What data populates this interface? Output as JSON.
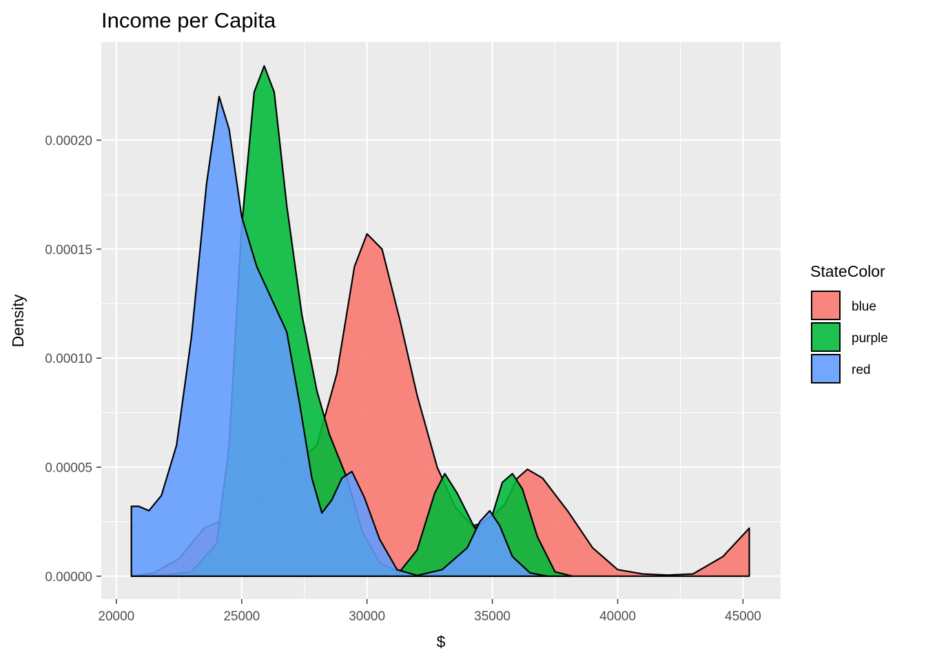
{
  "chart_data": {
    "type": "area",
    "subtype": "density",
    "title": "Income per Capita",
    "xlabel": "$",
    "ylabel": "Density",
    "xlim": [
      19400,
      46500
    ],
    "ylim": [
      -1.05e-05,
      0.000245
    ],
    "x_ticks": [
      {
        "value": 20000,
        "label": "20000"
      },
      {
        "value": 25000,
        "label": "25000"
      },
      {
        "value": 30000,
        "label": "30000"
      },
      {
        "value": 35000,
        "label": "35000"
      },
      {
        "value": 40000,
        "label": "40000"
      },
      {
        "value": 45000,
        "label": "45000"
      }
    ],
    "y_ticks": [
      {
        "value": 0,
        "label": "0.00000"
      },
      {
        "value": 5e-05,
        "label": "0.00005"
      },
      {
        "value": 0.0001,
        "label": "0.00010"
      },
      {
        "value": 0.00015,
        "label": "0.00015"
      },
      {
        "value": 0.0002,
        "label": "0.00020"
      }
    ],
    "grid": true,
    "legend": {
      "title": "StateColor",
      "placement": "right"
    },
    "series": [
      {
        "name": "blue",
        "color": "#F8766D",
        "points": [
          [
            20600,
            0
          ],
          [
            21500,
            1.5e-06
          ],
          [
            22500,
            8e-06
          ],
          [
            23500,
            2.2e-05
          ],
          [
            24500,
            2.7e-05
          ],
          [
            25500,
            3.2e-05
          ],
          [
            26100,
            4.4e-05
          ],
          [
            26800,
            5.8e-05
          ],
          [
            27500,
            5.5e-05
          ],
          [
            28000,
            6e-05
          ],
          [
            28800,
            9.3e-05
          ],
          [
            29500,
            0.000142
          ],
          [
            30000,
            0.000157
          ],
          [
            30600,
            0.00015
          ],
          [
            31300,
            0.000118
          ],
          [
            32000,
            8.3e-05
          ],
          [
            32800,
            5e-05
          ],
          [
            33500,
            3.2e-05
          ],
          [
            34200,
            2.3e-05
          ],
          [
            34800,
            2.5e-05
          ],
          [
            35500,
            3.3e-05
          ],
          [
            36000,
            4.5e-05
          ],
          [
            36400,
            4.9e-05
          ],
          [
            37000,
            4.5e-05
          ],
          [
            38000,
            3e-05
          ],
          [
            39000,
            1.3e-05
          ],
          [
            40000,
            3e-06
          ],
          [
            41000,
            1e-06
          ],
          [
            42000,
            5e-07
          ],
          [
            43000,
            1e-06
          ],
          [
            44200,
            9e-06
          ],
          [
            45250,
            2.2e-05
          ]
        ]
      },
      {
        "name": "purple",
        "color": "#00BA38",
        "points": [
          [
            20600,
            0
          ],
          [
            22000,
            5e-07
          ],
          [
            23000,
            2e-06
          ],
          [
            24000,
            1.5e-05
          ],
          [
            24500,
            6e-05
          ],
          [
            25000,
            0.00016
          ],
          [
            25500,
            0.000222
          ],
          [
            25900,
            0.000234
          ],
          [
            26300,
            0.000222
          ],
          [
            26800,
            0.00017
          ],
          [
            27400,
            0.00012
          ],
          [
            28000,
            8.5e-05
          ],
          [
            28500,
            6.5e-05
          ],
          [
            29200,
            4.5e-05
          ],
          [
            29800,
            2.1e-05
          ],
          [
            30500,
            6e-06
          ],
          [
            31300,
            2e-06
          ],
          [
            32000,
            1.2e-05
          ],
          [
            32700,
            3.8e-05
          ],
          [
            33100,
            4.7e-05
          ],
          [
            33600,
            3.8e-05
          ],
          [
            34300,
            2.2e-05
          ],
          [
            35000,
            2.8e-05
          ],
          [
            35400,
            4.3e-05
          ],
          [
            35800,
            4.7e-05
          ],
          [
            36200,
            4e-05
          ],
          [
            36800,
            1.8e-05
          ],
          [
            37500,
            2e-06
          ],
          [
            38200,
            0
          ]
        ]
      },
      {
        "name": "red",
        "color": "#619CFF",
        "points": [
          [
            20600,
            3.2e-05
          ],
          [
            20900,
            3.2e-05
          ],
          [
            21300,
            3e-05
          ],
          [
            21800,
            3.7e-05
          ],
          [
            22400,
            6e-05
          ],
          [
            23000,
            0.00011
          ],
          [
            23600,
            0.00018
          ],
          [
            24100,
            0.00022
          ],
          [
            24500,
            0.000205
          ],
          [
            25000,
            0.000165
          ],
          [
            25600,
            0.000142
          ],
          [
            26200,
            0.000127
          ],
          [
            26800,
            0.000112
          ],
          [
            27300,
            8e-05
          ],
          [
            27800,
            4.5e-05
          ],
          [
            28200,
            2.9e-05
          ],
          [
            28600,
            3.5e-05
          ],
          [
            29000,
            4.5e-05
          ],
          [
            29400,
            4.8e-05
          ],
          [
            29900,
            3.6e-05
          ],
          [
            30500,
            1.7e-05
          ],
          [
            31200,
            3e-06
          ],
          [
            32000,
            3e-07
          ],
          [
            33000,
            3e-06
          ],
          [
            34000,
            1.3e-05
          ],
          [
            34500,
            2.5e-05
          ],
          [
            34900,
            3e-05
          ],
          [
            35300,
            2.3e-05
          ],
          [
            35800,
            9e-06
          ],
          [
            36500,
            1.5e-06
          ],
          [
            37200,
            0
          ]
        ]
      }
    ]
  }
}
